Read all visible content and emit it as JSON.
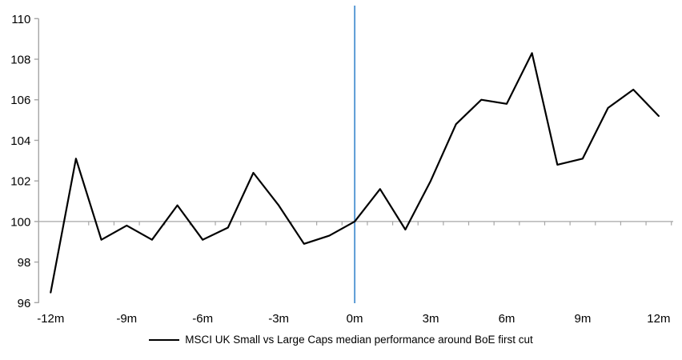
{
  "chart_data": {
    "type": "line",
    "title": "",
    "xlabel": "",
    "ylabel": "",
    "x_unit": "months relative to first cut",
    "x": [
      -12,
      -11,
      -10,
      -9,
      -8,
      -7,
      -6,
      -5,
      -4,
      -3,
      -2,
      -1,
      0,
      1,
      2,
      3,
      4,
      5,
      6,
      7,
      8,
      9,
      10,
      11,
      12
    ],
    "series": [
      {
        "name": "MSCI UK Small vs Large Caps median performance around BoE first cut",
        "color": "#000000",
        "values": [
          96.5,
          103.1,
          99.1,
          99.8,
          99.1,
          100.8,
          99.1,
          99.7,
          102.4,
          100.8,
          98.9,
          99.3,
          100.0,
          101.6,
          99.6,
          102.0,
          104.8,
          106.0,
          105.8,
          108.3,
          102.8,
          103.1,
          105.6,
          106.5,
          105.2
        ]
      }
    ],
    "ylim": [
      96,
      110
    ],
    "y_ticks": [
      96,
      98,
      100,
      102,
      104,
      106,
      108,
      110
    ],
    "y_tick_labels": [
      "96",
      "98",
      "100",
      "102",
      "104",
      "106",
      "108",
      "110"
    ],
    "x_tick_values": [
      -12,
      -9,
      -6,
      -3,
      0,
      3,
      6,
      9,
      12
    ],
    "x_tick_labels": [
      "-12m",
      "-9m",
      "-6m",
      "-3m",
      "0m",
      "3m",
      "6m",
      "9m",
      "12m"
    ],
    "baseline_value": 100,
    "event_line_x": 0,
    "grid": "single horizontal line at 100 with minor ticks between each month",
    "legend_position": "bottom-center"
  },
  "legend": {
    "label": "MSCI UK Small vs Large Caps median performance around BoE first cut"
  },
  "colors": {
    "series_line": "#000000",
    "axis_gray": "#A6A6A6",
    "event_line_blue": "#5B9BD5",
    "label_text": "#000000",
    "background": "#FFFFFF"
  }
}
